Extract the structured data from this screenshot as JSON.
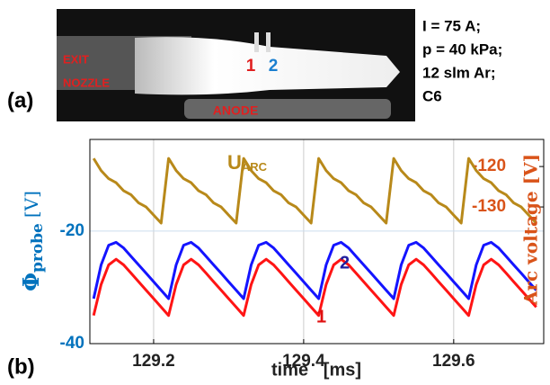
{
  "panel_a": {
    "label": "(a)",
    "photo_labels": {
      "exit": "EXIT",
      "nozzle": "NOZZLE",
      "probe1": "1",
      "probe2": "2",
      "anode": "ANODE"
    },
    "conditions": [
      "I = 75 A;",
      "p = 40 kPa;",
      "12 slm Ar;",
      "C6"
    ]
  },
  "chart_data": {
    "type": "line",
    "panel_label": "(b)",
    "xlabel": "time   [ms]",
    "ylabel": "Φ",
    "ylabel_sub": "probe",
    "ylabel_unit": "[V]",
    "y2label": "Arc voltage [V]",
    "xlim": [
      129.115,
      129.72
    ],
    "xticks": [
      129.2,
      129.4,
      129.6
    ],
    "ylim": [
      -40,
      -3.7
    ],
    "yticks": [
      -40,
      -20
    ],
    "y2lim": [
      -163.8,
      -113.3
    ],
    "y2ticks": [
      -120,
      -130
    ],
    "ycolor": "#0072bd",
    "y2color": "#d95319",
    "grid": true,
    "x": [
      129.12,
      129.13,
      129.14,
      129.15,
      129.16,
      129.17,
      129.18,
      129.19,
      129.2,
      129.21,
      129.22,
      129.23,
      129.24,
      129.25,
      129.26,
      129.27,
      129.28,
      129.29,
      129.3,
      129.31,
      129.32,
      129.33,
      129.34,
      129.35,
      129.36,
      129.37,
      129.38,
      129.39,
      129.4,
      129.41,
      129.42,
      129.43,
      129.44,
      129.45,
      129.46,
      129.47,
      129.48,
      129.49,
      129.5,
      129.51,
      129.52,
      129.53,
      129.54,
      129.55,
      129.56,
      129.57,
      129.58,
      129.59,
      129.6,
      129.61,
      129.62,
      129.63,
      129.64,
      129.65,
      129.66,
      129.67,
      129.68,
      129.69,
      129.7,
      129.71
    ],
    "series": [
      {
        "name": "U",
        "name_sub": "ARC",
        "color": "#b8891a",
        "axis": "y2",
        "values": [
          -118,
          -121,
          -123,
          -124,
          -126,
          -127,
          -129,
          -130,
          -132,
          -134,
          -118,
          -121,
          -123,
          -124,
          -126,
          -127,
          -129,
          -130,
          -132,
          -134,
          -118,
          -121,
          -123,
          -124,
          -126,
          -127,
          -129,
          -130,
          -132,
          -134,
          -118,
          -121,
          -123,
          -124,
          -126,
          -127,
          -129,
          -130,
          -132,
          -134,
          -118,
          -121,
          -123,
          -124,
          -126,
          -127,
          -129,
          -130,
          -132,
          -134,
          -118,
          -121,
          -123,
          -124,
          -126,
          -127,
          -129,
          -130,
          -132,
          -134
        ]
      },
      {
        "name": "2",
        "color": "#1414ff",
        "values": [
          -32,
          -26,
          -22.5,
          -22,
          -23,
          -24.5,
          -26,
          -27.5,
          -29,
          -30.5,
          -32,
          -26,
          -22.5,
          -22,
          -23,
          -24.5,
          -26,
          -27.5,
          -29,
          -30.5,
          -32,
          -26,
          -22.5,
          -22,
          -23,
          -24.5,
          -26,
          -27.5,
          -29,
          -30.5,
          -32,
          -26,
          -22.5,
          -22,
          -23,
          -24.5,
          -26,
          -27.5,
          -29,
          -30.5,
          -32,
          -26,
          -22.5,
          -22,
          -23,
          -24.5,
          -26,
          -27.5,
          -29,
          -30.5,
          -32,
          -26,
          -22.5,
          -22,
          -23,
          -24.5,
          -26,
          -27.5,
          -29,
          -30.5
        ]
      },
      {
        "name": "1",
        "color": "#ff1414",
        "values": [
          -35,
          -29.5,
          -26,
          -25,
          -26,
          -27.5,
          -29,
          -30.5,
          -32,
          -33.5,
          -35,
          -29.5,
          -26,
          -25,
          -26,
          -27.5,
          -29,
          -30.5,
          -32,
          -33.5,
          -35,
          -29.5,
          -26,
          -25,
          -26,
          -27.5,
          -29,
          -30.5,
          -32,
          -33.5,
          -35,
          -29.5,
          -26,
          -25,
          -26,
          -27.5,
          -29,
          -30.5,
          -32,
          -33.5,
          -35,
          -29.5,
          -26,
          -25,
          -26,
          -27.5,
          -29,
          -30.5,
          -32,
          -33.5,
          -35,
          -29.5,
          -26,
          -25,
          -26,
          -27.5,
          -29,
          -30.5,
          -32,
          -33.5
        ]
      }
    ]
  }
}
